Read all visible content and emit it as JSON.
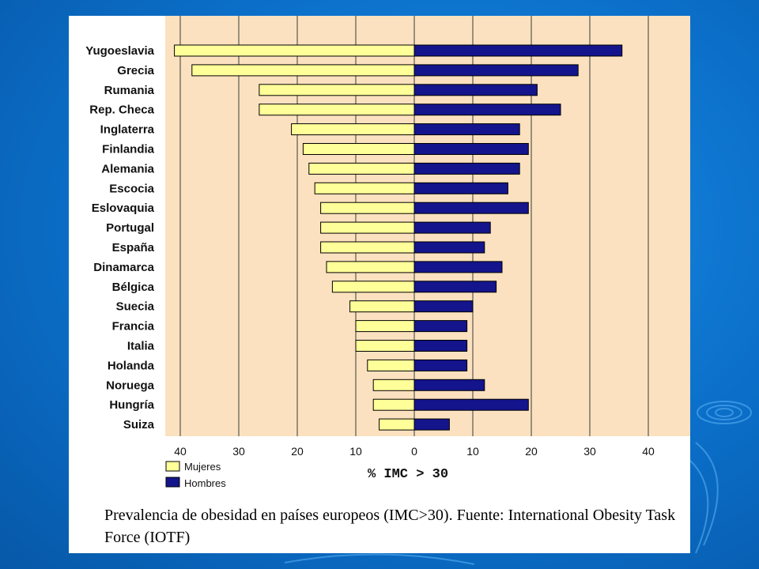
{
  "chart_data": {
    "type": "bar",
    "orientation": "horizontal",
    "xlabel": "% IMC > 30",
    "xlim": [
      -45,
      45
    ],
    "ticks": [
      40,
      30,
      20,
      10,
      0,
      10,
      20,
      30,
      40
    ],
    "tick_values": [
      -40,
      -30,
      -20,
      -10,
      0,
      10,
      20,
      30,
      40
    ],
    "grid": true,
    "legend_position": "bottom-left",
    "categories": [
      "Yugoeslavia",
      "Grecia",
      "Rumania",
      "Rep. Checa",
      "Inglaterra",
      "Finlandia",
      "Alemania",
      "Escocia",
      "Eslovaquia",
      "Portugal",
      "España",
      "Dinamarca",
      "Bélgica",
      "Suecia",
      "Francia",
      "Italia",
      "Holanda",
      "Noruega",
      "Hungría",
      "Suiza"
    ],
    "series": [
      {
        "name": "Mujeres",
        "color": "#ffff99",
        "values": [
          41,
          38,
          26.5,
          26.5,
          21,
          19,
          18,
          17,
          16,
          16,
          16,
          15,
          14,
          11,
          10,
          10,
          8,
          7,
          7,
          6
        ]
      },
      {
        "name": "Hombres",
        "color": "#14148c",
        "values": [
          35.5,
          28,
          21,
          25,
          18,
          19.5,
          18,
          16,
          19.5,
          13,
          12,
          15,
          14,
          10,
          9,
          9,
          9,
          12,
          19.5,
          6
        ]
      }
    ]
  },
  "caption": "Prevalencia de obesidad en países europeos (IMC>30).  Fuente: International Obesity Task Force (IOTF)"
}
